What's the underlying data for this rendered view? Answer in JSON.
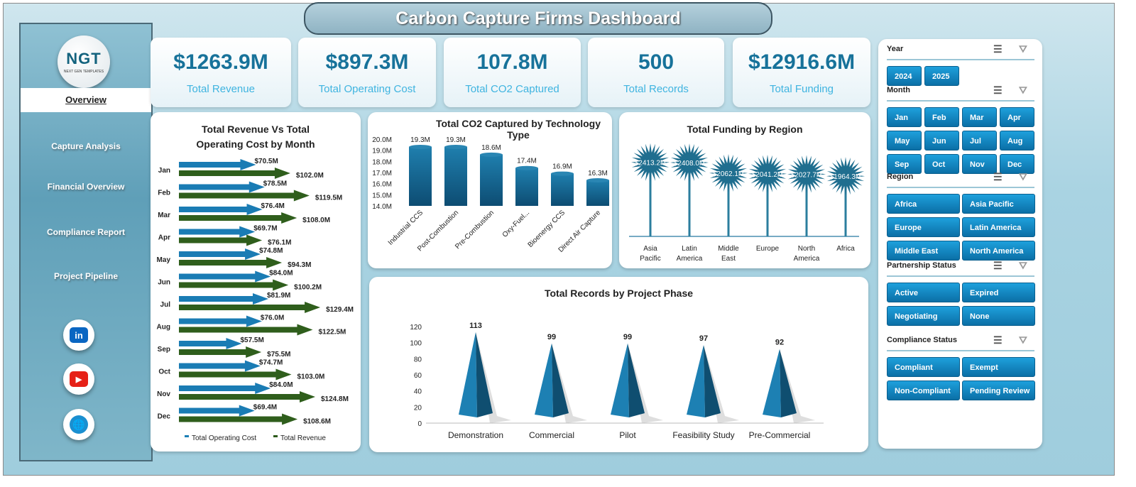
{
  "title": "Carbon Capture Firms Dashboard",
  "logo": {
    "text": "NGT",
    "subtext": "NEXT GEN TEMPLATES"
  },
  "sidebar": {
    "items": [
      {
        "label": "Overview",
        "active": true
      },
      {
        "label": "Capture Analysis"
      },
      {
        "label": "Financial Overview"
      },
      {
        "label": "Compliance Report"
      },
      {
        "label": "Project Pipeline"
      }
    ],
    "social": [
      {
        "icon": "linkedin-icon",
        "text": "in",
        "color": "#0a66c2"
      },
      {
        "icon": "youtube-icon",
        "text": "▶",
        "color": "#e62117"
      },
      {
        "icon": "globe-icon",
        "text": "🌐",
        "color": "#1a8fd0"
      }
    ]
  },
  "kpis": [
    {
      "value": "$1263.9M",
      "label": "Total Revenue"
    },
    {
      "value": "$897.3M",
      "label": "Total Operating Cost"
    },
    {
      "value": "107.8M",
      "label": "Total CO2 Captured"
    },
    {
      "value": "500",
      "label": "Total Records"
    },
    {
      "value": "$12916.6M",
      "label": "Total Funding"
    }
  ],
  "chart_data": [
    {
      "type": "bar",
      "orientation": "horizontal",
      "title": "Total Revenue Vs Total Operating Cost by Month",
      "categories": [
        "Jan",
        "Feb",
        "Mar",
        "Apr",
        "May",
        "Jun",
        "Jul",
        "Aug",
        "Sep",
        "Oct",
        "Nov",
        "Dec"
      ],
      "series": [
        {
          "name": "Total Operating Cost",
          "color": "#1b7fb5",
          "values": [
            70.5,
            78.5,
            76.4,
            69.7,
            74.8,
            84.0,
            81.9,
            76.0,
            57.5,
            74.7,
            84.0,
            69.4
          ],
          "labels": [
            "$70.5M",
            "$78.5M",
            "$76.4M",
            "$69.7M",
            "$74.8M",
            "$84.0M",
            "$81.9M",
            "$76.0M",
            "$57.5M",
            "$74.7M",
            "$84.0M",
            "$69.4M"
          ]
        },
        {
          "name": "Total Revenue",
          "color": "#2d5a1b",
          "values": [
            102.0,
            119.5,
            108.0,
            76.1,
            94.3,
            100.2,
            129.4,
            122.5,
            75.5,
            103.0,
            124.8,
            108.6
          ],
          "labels": [
            "$102.0M",
            "$119.5M",
            "$108.0M",
            "$76.1M",
            "$94.3M",
            "$100.2M",
            "$129.4M",
            "$122.5M",
            "$75.5M",
            "$103.0M",
            "$124.8M",
            "$108.6M"
          ]
        }
      ],
      "legend": "bottom",
      "xlim": [
        0,
        130
      ]
    },
    {
      "type": "bar",
      "title": "Total CO2 Captured by Technology Type",
      "categories": [
        "Industrial CCS",
        "Post-Combustion",
        "Pre-Combustion",
        "Oxy-Fuel...",
        "Bioenergy CCS",
        "Direct Air Capture"
      ],
      "values": [
        19.3,
        19.3,
        18.6,
        17.4,
        16.9,
        16.3
      ],
      "labels": [
        "19.3M",
        "19.3M",
        "18.6M",
        "17.4M",
        "16.9M",
        "16.3M"
      ],
      "ylim": [
        14,
        20
      ],
      "yticks": [
        "14.0M",
        "15.0M",
        "16.0M",
        "17.0M",
        "18.0M",
        "19.0M",
        "20.0M"
      ],
      "color": "#1b6f9c"
    },
    {
      "type": "bar",
      "style": "lollipop",
      "title": "Total Funding by Region",
      "categories": [
        "Asia Pacific",
        "Latin America",
        "Middle East",
        "Europe",
        "North America",
        "Africa"
      ],
      "values": [
        2413.2,
        2408.0,
        2062.1,
        2041.2,
        2027.7,
        1964.3
      ],
      "labels": [
        "$2413.2M",
        "$2408.0M",
        "$2062.1M",
        "$2041.2M",
        "$2027.7M",
        "$1964.3M"
      ],
      "ylim": [
        0,
        2500
      ],
      "color": "#2b7e9e"
    },
    {
      "type": "bar",
      "style": "pyramid",
      "title": "Total Records by Project Phase",
      "categories": [
        "Demonstration",
        "Commercial",
        "Pilot",
        "Feasibility Study",
        "Pre-Commercial"
      ],
      "values": [
        113,
        99,
        99,
        97,
        92
      ],
      "ylim": [
        0,
        120
      ],
      "yticks": [
        "0",
        "20",
        "40",
        "60",
        "80",
        "100",
        "120"
      ],
      "color": "#1b7fb0"
    }
  ],
  "filters": [
    {
      "label": "Year",
      "options": [
        "2024",
        "2025"
      ],
      "cols": 4
    },
    {
      "label": "Month",
      "options": [
        "Jan",
        "Feb",
        "Mar",
        "Apr",
        "May",
        "Jun",
        "Jul",
        "Aug",
        "Sep",
        "Oct",
        "Nov",
        "Dec"
      ],
      "cols": 4
    },
    {
      "label": "Region",
      "options": [
        "Africa",
        "Asia Pacific",
        "Europe",
        "Latin America",
        "Middle East",
        "North America"
      ],
      "cols": 2
    },
    {
      "label": "Partnership Status",
      "options": [
        "Active",
        "Expired",
        "Negotiating",
        "None"
      ],
      "cols": 2
    },
    {
      "label": "Compliance Status",
      "options": [
        "Compliant",
        "Exempt",
        "Non-Compliant",
        "Pending Review"
      ],
      "cols": 2
    }
  ]
}
